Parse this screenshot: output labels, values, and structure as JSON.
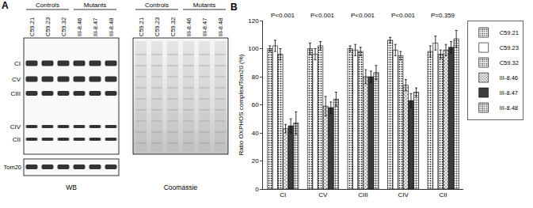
{
  "panel_a": {
    "panel_label": "A",
    "groups": [
      {
        "label": "Controls",
        "lanes": [
          "C59.21",
          "C59.23",
          "C59.32"
        ]
      },
      {
        "label": "Mutants",
        "lanes": [
          "III-8.46",
          "III-8.47",
          "III-8.48"
        ]
      }
    ],
    "bands": [
      "CI",
      "CV",
      "CIII",
      "CIV",
      "CII"
    ],
    "loading_control": "Tom20",
    "blot_label": "WB",
    "gel_label": "Coomassie"
  },
  "chart_data": {
    "type": "bar",
    "panel_label": "B",
    "y_label": "Ratio OXPHOS complex/Tom20 (%)",
    "categories": [
      "CI",
      "CV",
      "CIII",
      "CIV",
      "CII"
    ],
    "series": [
      {
        "name": "C59.21",
        "color": "#e6e6e6",
        "marker": "dots",
        "values": [
          100,
          100,
          100,
          106,
          98
        ],
        "errors": [
          2,
          4,
          2,
          2,
          4
        ]
      },
      {
        "name": "C59.23",
        "color": "#ffffff",
        "marker": "none",
        "values": [
          102,
          96,
          99,
          99,
          104
        ],
        "errors": [
          4,
          4,
          4,
          4,
          5
        ]
      },
      {
        "name": "C59.32",
        "color": "#d2d2d2",
        "marker": "dots",
        "values": [
          96,
          102,
          98,
          95,
          96
        ],
        "errors": [
          4,
          3,
          3,
          3,
          3
        ]
      },
      {
        "name": "III-8.46",
        "color": "#a0a0a0",
        "marker": "crosshatch",
        "values": [
          43,
          59,
          80,
          74,
          99
        ],
        "errors": [
          3,
          7,
          5,
          4,
          4
        ]
      },
      {
        "name": "III-8.47",
        "color": "#3c3c3c",
        "marker": "none",
        "values": [
          45,
          58,
          80,
          63,
          101
        ],
        "errors": [
          5,
          4,
          4,
          5,
          4
        ]
      },
      {
        "name": "III-8.48",
        "color": "#707070",
        "marker": "grid",
        "values": [
          47,
          64,
          83,
          69,
          107
        ],
        "errors": [
          8,
          5,
          5,
          3,
          6
        ]
      }
    ],
    "annotations": [
      {
        "category": "CI",
        "text": "P<0.001"
      },
      {
        "category": "CV",
        "text": "P<0.001"
      },
      {
        "category": "CIII",
        "text": "P<0.001"
      },
      {
        "category": "CIV",
        "text": "P<0.001"
      },
      {
        "category": "CII",
        "text": "P=0.359"
      }
    ],
    "ylim": [
      0,
      120
    ],
    "yticks": [
      0,
      20,
      40,
      60,
      80,
      100,
      120
    ],
    "grid": false,
    "legend": "top-right"
  }
}
